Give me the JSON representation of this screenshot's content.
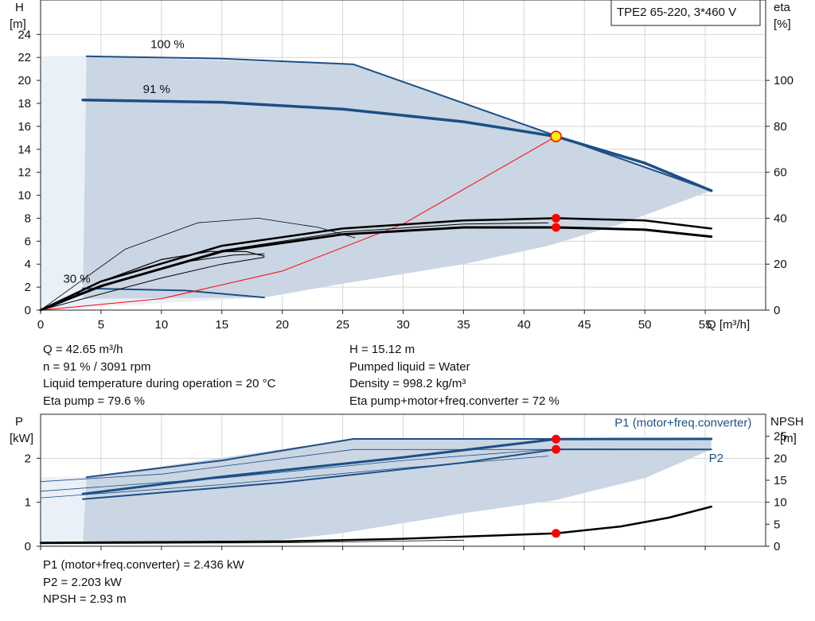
{
  "colors": {
    "curve": "#1d4f86",
    "band": "#cad6e3",
    "band_light": "#e9f0f8",
    "duty": "#ff0000",
    "point_fill": "#ffee00",
    "black": "#000000"
  },
  "chart_data": [
    {
      "type": "line",
      "title": "TPE2 65-220, 3*460 V",
      "xlabel": "Q [m³/h]",
      "ylabel_left": [
        "H",
        "[m]"
      ],
      "ylabel_right": [
        "eta",
        "[%]"
      ],
      "xlim": [
        0,
        60
      ],
      "ylim": [
        0,
        27
      ],
      "right_ylim": [
        0,
        135
      ],
      "x_ticks": [
        "0",
        "5",
        "10",
        "15",
        "20",
        "25",
        "30",
        "35",
        "40",
        "45",
        "50",
        "55"
      ],
      "y_ticks": [
        "0",
        "2",
        "4",
        "6",
        "8",
        "10",
        "12",
        "14",
        "16",
        "18",
        "20",
        "22",
        "24"
      ],
      "right_ticks": [
        "0",
        "20",
        "40",
        "60",
        "80",
        "100"
      ],
      "speed_labels": [
        {
          "text": "100 %",
          "x": 10.5,
          "y": 22.8
        },
        {
          "text": "91 %",
          "x": 9.6,
          "y": 18.9
        },
        {
          "text": "30 %",
          "x": 3.0,
          "y": 2.4
        }
      ],
      "band": {
        "top": [
          [
            3.8,
            22.1
          ],
          [
            25.9,
            21.4
          ],
          [
            55.5,
            10.4
          ]
        ],
        "bottom": [
          [
            18.5,
            1.1
          ],
          [
            25,
            2.3
          ],
          [
            35,
            4.0
          ],
          [
            42,
            5.6
          ],
          [
            48,
            7.5
          ],
          [
            55.5,
            10.4
          ]
        ]
      },
      "series": [
        {
          "name": "100 %",
          "style": "curve",
          "width": 2,
          "points": [
            [
              3.8,
              22.1
            ],
            [
              15,
              21.9
            ],
            [
              25.9,
              21.4
            ],
            [
              55.5,
              10.4
            ]
          ]
        },
        {
          "name": "91 %",
          "style": "curve",
          "width": 3.5,
          "points": [
            [
              3.5,
              18.3
            ],
            [
              15,
              18.1
            ],
            [
              25,
              17.5
            ],
            [
              35,
              16.4
            ],
            [
              42.65,
              15.12
            ],
            [
              50,
              12.8
            ],
            [
              55.5,
              10.4
            ]
          ]
        },
        {
          "name": "30 %",
          "style": "curve",
          "width": 2,
          "points": [
            [
              3.5,
              1.9
            ],
            [
              12,
              1.7
            ],
            [
              18.5,
              1.1
            ]
          ]
        },
        {
          "name": "",
          "style": "duty",
          "width": 1,
          "points": [
            [
              0,
              0
            ],
            [
              10,
              1.0
            ],
            [
              20,
              3.4
            ],
            [
              30,
              7.5
            ],
            [
              42.65,
              15.12
            ]
          ]
        },
        {
          "name": "",
          "style": "thin",
          "width": 0.8,
          "points": [
            [
              0,
              0
            ],
            [
              7,
              5.3
            ],
            [
              13,
              7.6
            ],
            [
              18,
              8.0
            ],
            [
              23,
              7.2
            ],
            [
              26,
              6.3
            ]
          ]
        },
        {
          "name": "",
          "style": "eta",
          "width": 2.5,
          "points": [
            [
              0,
              0
            ],
            [
              5,
              2.5
            ],
            [
              15,
              5.6
            ],
            [
              25,
              7.1
            ],
            [
              35,
              7.8
            ],
            [
              42.65,
              8.0
            ],
            [
              50,
              7.8
            ],
            [
              55.5,
              7.1
            ]
          ]
        },
        {
          "name": "",
          "style": "eta",
          "width": 3,
          "points": [
            [
              0,
              0
            ],
            [
              5,
              2.1
            ],
            [
              15,
              5.1
            ],
            [
              25,
              6.6
            ],
            [
              35,
              7.2
            ],
            [
              42.65,
              7.2
            ],
            [
              50,
              7.0
            ],
            [
              55.5,
              6.4
            ]
          ]
        },
        {
          "name": "",
          "style": "eta",
          "width": 1.2,
          "points": [
            [
              0,
              0
            ],
            [
              5,
              2.5
            ],
            [
              10,
              4.4
            ],
            [
              14,
              5.1
            ],
            [
              17,
              5.1
            ],
            [
              18.5,
              4.7
            ]
          ]
        },
        {
          "name": "",
          "style": "eta",
          "width": 1,
          "points": [
            [
              0,
              0
            ],
            [
              6,
              2.4
            ],
            [
              12,
              4.2
            ],
            [
              16,
              4.8
            ],
            [
              18.5,
              4.9
            ]
          ]
        },
        {
          "name": "",
          "style": "eta",
          "width": 1,
          "points": [
            [
              3,
              1.4
            ],
            [
              15,
              5.2
            ],
            [
              25,
              6.8
            ],
            [
              35,
              7.5
            ],
            [
              42,
              7.6
            ]
          ]
        },
        {
          "name": "",
          "style": "eta",
          "width": 1,
          "points": [
            [
              0,
              0
            ],
            [
              10,
              2.8
            ],
            [
              15,
              4.0
            ],
            [
              18.5,
              4.6
            ]
          ]
        }
      ],
      "points": [
        {
          "x": 42.65,
          "y": 15.12,
          "kind": "operating"
        },
        {
          "x": 42.65,
          "y": 8.0,
          "kind": "dot"
        },
        {
          "x": 42.65,
          "y": 7.2,
          "kind": "dot"
        }
      ]
    },
    {
      "type": "line",
      "xlim": [
        0,
        60
      ],
      "ylim": [
        0,
        3
      ],
      "right_ylim": [
        0,
        30
      ],
      "ylabel_left": [
        "P",
        "[kW]"
      ],
      "ylabel_right": [
        "NPSH",
        "[m]"
      ],
      "y_ticks": [
        "0",
        "1",
        "2"
      ],
      "right_ticks": [
        "0",
        "5",
        "10",
        "15",
        "20",
        "25"
      ],
      "series_labels": [
        {
          "text": "P1 (motor+freq.converter)",
          "x": 47.5,
          "y": 2.72
        },
        {
          "text": "P2",
          "x": 55.3,
          "y": 1.92
        }
      ],
      "band": {
        "top": [
          [
            3.8,
            1.57
          ],
          [
            25.9,
            2.44
          ],
          [
            55.5,
            2.44
          ]
        ],
        "bottom": [
          [
            18.5,
            0.1
          ],
          [
            25,
            0.3
          ],
          [
            35,
            0.75
          ],
          [
            42.65,
            1.05
          ],
          [
            50,
            1.55
          ],
          [
            55.5,
            2.2
          ]
        ]
      },
      "series": [
        {
          "name": "P1 (motor+freq.converter)",
          "style": "curve",
          "width": 2,
          "points": [
            [
              3.8,
              1.57
            ],
            [
              15,
              1.95
            ],
            [
              25.9,
              2.44
            ],
            [
              55.5,
              2.44
            ]
          ]
        },
        {
          "name": "",
          "style": "curve",
          "width": 3,
          "points": [
            [
              3.5,
              1.19
            ],
            [
              15,
              1.58
            ],
            [
              30,
              2.02
            ],
            [
              42.65,
              2.436
            ],
            [
              55.5,
              2.44
            ]
          ]
        },
        {
          "name": "P2",
          "style": "curve",
          "width": 2,
          "points": [
            [
              3.5,
              1.07
            ],
            [
              20,
              1.45
            ],
            [
              35,
              1.9
            ],
            [
              42.65,
              2.203
            ],
            [
              55.5,
              2.2
            ]
          ]
        },
        {
          "name": "",
          "style": "thin",
          "width": 0.8,
          "points": [
            [
              0,
              1.47
            ],
            [
              10,
              1.64
            ],
            [
              25.9,
              2.2
            ],
            [
              55.5,
              2.2
            ]
          ]
        },
        {
          "name": "",
          "style": "thin",
          "width": 0.8,
          "points": [
            [
              0,
              1.25
            ],
            [
              15,
              1.55
            ],
            [
              30,
              1.95
            ],
            [
              42,
              2.2
            ]
          ]
        },
        {
          "name": "",
          "style": "thin",
          "width": 0.8,
          "points": [
            [
              0,
              1.1
            ],
            [
              15,
              1.4
            ],
            [
              30,
              1.78
            ],
            [
              42,
              2.05
            ]
          ]
        },
        {
          "name": "",
          "style": "npsh",
          "width": 2.5,
          "points": [
            [
              0,
              0.08
            ],
            [
              20,
              0.11
            ],
            [
              30,
              0.17
            ],
            [
              42.65,
              0.293
            ],
            [
              48,
              0.45
            ],
            [
              52,
              0.65
            ],
            [
              55.5,
              0.9
            ]
          ]
        },
        {
          "name": "",
          "style": "thin",
          "width": 0.8,
          "points": [
            [
              0,
              0.06
            ],
            [
              20,
              0.08
            ],
            [
              35,
              0.14
            ]
          ]
        }
      ],
      "points": [
        {
          "x": 42.65,
          "y": 2.436,
          "kind": "dot"
        },
        {
          "x": 42.65,
          "y": 2.203,
          "kind": "dot"
        },
        {
          "x": 42.65,
          "y": 0.293,
          "kind": "dot"
        }
      ]
    }
  ],
  "duty_point": {
    "left": [
      "Q = 42.65 m³/h",
      "n = 91 % / 3091 rpm",
      "Liquid temperature during operation = 20 °C",
      "Eta pump = 79.6 %"
    ],
    "right": [
      "H = 15.12 m",
      "Pumped liquid = Water",
      "Density = 998.2 kg/m³",
      "Eta pump+motor+freq.converter = 72 %"
    ]
  },
  "power_readout": [
    "P1 (motor+freq.converter) = 2.436 kW",
    "P2 = 2.203 kW",
    "NPSH = 2.93 m"
  ]
}
